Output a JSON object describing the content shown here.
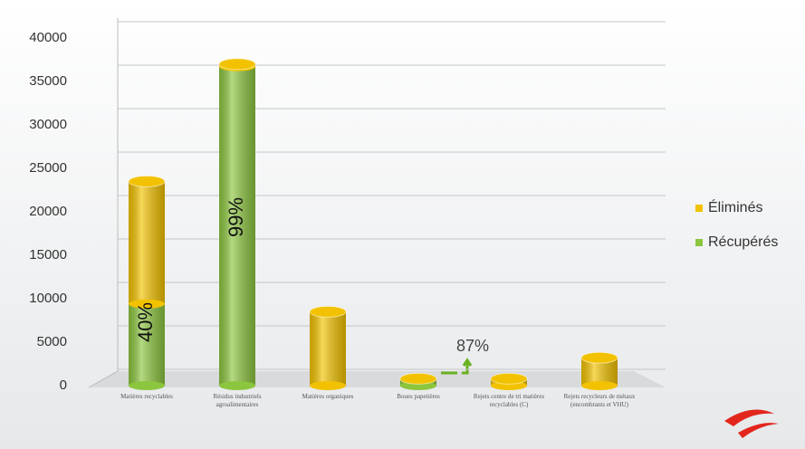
{
  "chart_data": {
    "type": "bar",
    "stacked": true,
    "categories": [
      "Matières recyclables",
      "Résidus industriels agroalimentaires",
      "Matières organiques",
      "Boues papetières",
      "Rejets centre de tri matières recyclables (C)",
      "Rejets recycleurs de métaux (encombrants et VHU)"
    ],
    "series": [
      {
        "name": "Récupérés",
        "color": "#8cc63f",
        "values": [
          9400,
          36700,
          0,
          700,
          0,
          0
        ]
      },
      {
        "name": "Éliminés",
        "color": "#f2c200",
        "values": [
          14100,
          300,
          8500,
          100,
          800,
          3200
        ]
      }
    ],
    "ylim": [
      0,
      40000
    ],
    "yticks": [
      0,
      5000,
      10000,
      15000,
      20000,
      25000,
      30000,
      35000,
      40000
    ],
    "grid": true,
    "legend": "right",
    "annotations": [
      {
        "text": "40%"
      },
      {
        "text": "99%"
      },
      {
        "text": "87%"
      }
    ]
  }
}
